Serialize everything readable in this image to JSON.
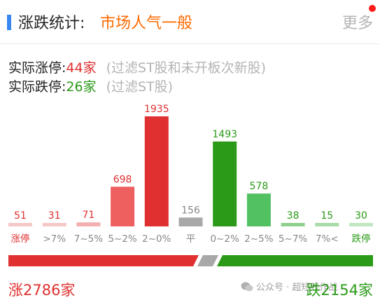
{
  "header": {
    "title": "涨跌统计:",
    "sentiment": "市场人气一般",
    "more_label": "更多"
  },
  "stats": {
    "limit_up_label": "实际涨停:",
    "limit_up_count": "44家",
    "limit_up_note": "(过滤ST股和未开板次新股)",
    "limit_down_label": "实际跌停:",
    "limit_down_count": "26家",
    "limit_down_note": "(过滤ST股)"
  },
  "chart_data": {
    "type": "bar",
    "categories": [
      "涨停",
      ">7%",
      "7~5%",
      "5~2%",
      "2~0%",
      "平",
      "0~2%",
      "2~5%",
      "5~7%",
      "7%<",
      "跌停"
    ],
    "values": [
      51,
      31,
      71,
      698,
      1935,
      156,
      1493,
      578,
      38,
      15,
      30
    ],
    "bar_colors": [
      "#f6c9c9",
      "#f6c9c9",
      "#f2b0b0",
      "#ee6060",
      "#e03030",
      "#a8a8a8",
      "#2a9a18",
      "#52c162",
      "#8fd08f",
      "#a8dca8",
      "#c2e6c2"
    ],
    "label_colors": [
      "#e03030",
      "#e03030",
      "#e03030",
      "#e03030",
      "#e03030",
      "#888888",
      "#2a9a18",
      "#2a9a18",
      "#2a9a18",
      "#2a9a18",
      "#2a9a18"
    ],
    "category_label_colors": [
      "#e03030",
      "#888888",
      "#888888",
      "#888888",
      "#888888",
      "#888888",
      "#888888",
      "#888888",
      "#888888",
      "#888888",
      "#2a9a18"
    ]
  },
  "ratio": {
    "up_color": "#e03030",
    "flat_color": "#a8a8a8",
    "down_color": "#2a9a18"
  },
  "totals": {
    "up_label": "涨2786家",
    "down_label": "跌2154家",
    "watermark": "公众号 · 超短线作战"
  }
}
